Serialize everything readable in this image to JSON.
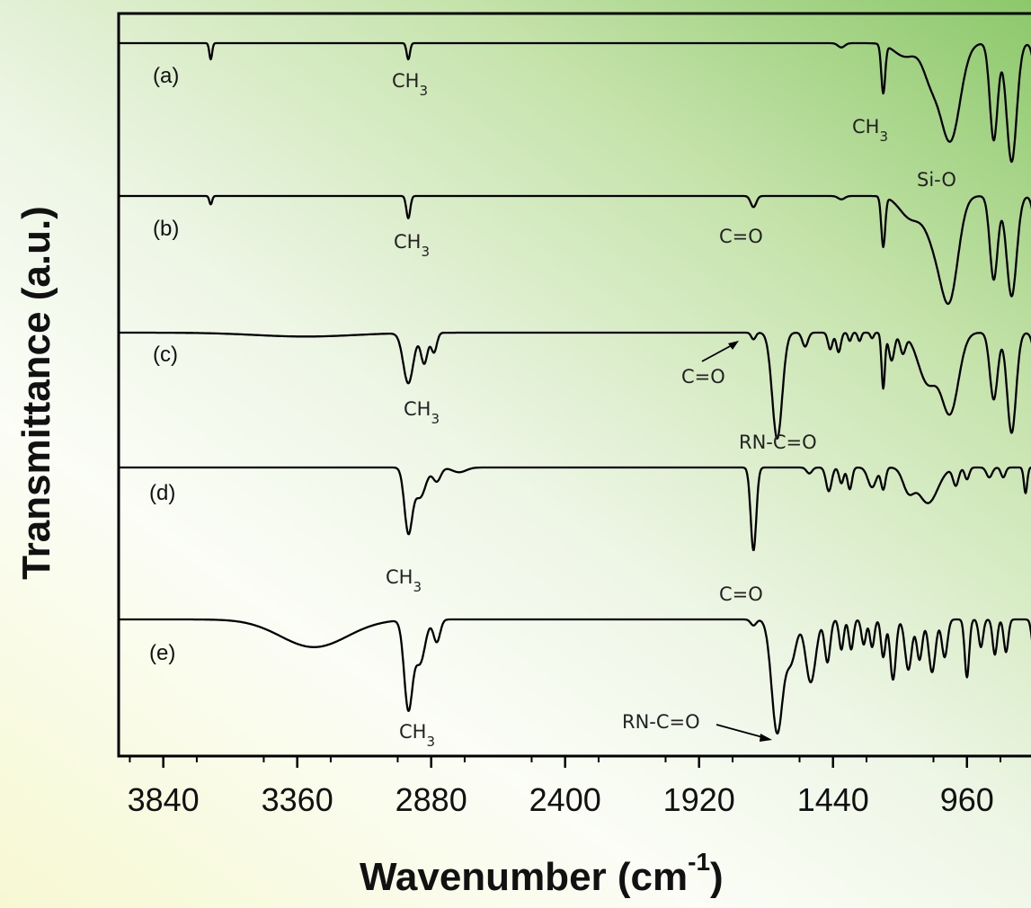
{
  "chart_data": {
    "type": "line",
    "title": "",
    "xlabel": {
      "main": "Wavenumber (cm",
      "sup": "-1",
      "close": ")"
    },
    "ylabel": "Transmittance (a.u.)",
    "x_reversed": true,
    "xlim": [
      4000,
      650
    ],
    "x_ticks": [
      "3840",
      "3360",
      "2880",
      "2400",
      "1920",
      "1440",
      "960"
    ],
    "x_tick_values": [
      3840,
      3360,
      2880,
      2400,
      1920,
      1440,
      960
    ],
    "grid": false,
    "legend": "none",
    "y_stacked_offset_baselines": [
      0,
      1,
      2,
      3,
      4
    ],
    "series": [
      {
        "name": "(a)",
        "baseline": 0,
        "bands": [
          {
            "x": 3670,
            "depth": 0.3,
            "width": 5
          },
          {
            "x": 2962,
            "depth": 0.3,
            "width": 6
          },
          {
            "x": 1410,
            "depth": 0.08,
            "width": 12
          },
          {
            "x": 1260,
            "depth": 0.9,
            "width": 7
          },
          {
            "x": 1180,
            "depth": 0.25,
            "width": 40
          },
          {
            "x": 1090,
            "depth": 0.6,
            "width": 28
          },
          {
            "x": 1020,
            "depth": 1.8,
            "width": 35
          },
          {
            "x": 864,
            "depth": 1.8,
            "width": 14
          },
          {
            "x": 800,
            "depth": 2.2,
            "width": 18
          },
          {
            "x": 700,
            "depth": 1.2,
            "width": 15
          }
        ]
      },
      {
        "name": "(b)",
        "baseline": 1,
        "bands": [
          {
            "x": 3670,
            "depth": 0.15,
            "width": 5
          },
          {
            "x": 2962,
            "depth": 0.4,
            "width": 7
          },
          {
            "x": 1725,
            "depth": 0.2,
            "width": 10
          },
          {
            "x": 1410,
            "depth": 0.06,
            "width": 12
          },
          {
            "x": 1260,
            "depth": 0.9,
            "width": 7
          },
          {
            "x": 1160,
            "depth": 0.4,
            "width": 40
          },
          {
            "x": 1070,
            "depth": 0.8,
            "width": 35
          },
          {
            "x": 1020,
            "depth": 1.6,
            "width": 30
          },
          {
            "x": 864,
            "depth": 1.5,
            "width": 14
          },
          {
            "x": 800,
            "depth": 1.8,
            "width": 18
          },
          {
            "x": 700,
            "depth": 1.2,
            "width": 15
          }
        ]
      },
      {
        "name": "(c)",
        "baseline": 2,
        "bands": [
          {
            "x": 3330,
            "depth": 0.07,
            "width": 180
          },
          {
            "x": 2962,
            "depth": 0.9,
            "width": 18
          },
          {
            "x": 2905,
            "depth": 0.55,
            "width": 12
          },
          {
            "x": 2870,
            "depth": 0.35,
            "width": 10
          },
          {
            "x": 1725,
            "depth": 0.12,
            "width": 8
          },
          {
            "x": 1640,
            "depth": 1.9,
            "width": 18
          },
          {
            "x": 1540,
            "depth": 0.25,
            "width": 10
          },
          {
            "x": 1450,
            "depth": 0.3,
            "width": 8
          },
          {
            "x": 1420,
            "depth": 0.35,
            "width": 8
          },
          {
            "x": 1380,
            "depth": 0.15,
            "width": 6
          },
          {
            "x": 1345,
            "depth": 0.15,
            "width": 6
          },
          {
            "x": 1300,
            "depth": 0.1,
            "width": 6
          },
          {
            "x": 1260,
            "depth": 1.0,
            "width": 6
          },
          {
            "x": 1230,
            "depth": 0.5,
            "width": 10
          },
          {
            "x": 1190,
            "depth": 0.35,
            "width": 10
          },
          {
            "x": 1100,
            "depth": 0.9,
            "width": 35
          },
          {
            "x": 1020,
            "depth": 1.4,
            "width": 30
          },
          {
            "x": 864,
            "depth": 1.2,
            "width": 14
          },
          {
            "x": 800,
            "depth": 1.8,
            "width": 16
          },
          {
            "x": 700,
            "depth": 1.0,
            "width": 15
          }
        ]
      },
      {
        "name": "(d)",
        "baseline": 3,
        "bands": [
          {
            "x": 2962,
            "depth": 1.6,
            "width": 14
          },
          {
            "x": 2920,
            "depth": 0.75,
            "width": 20
          },
          {
            "x": 2860,
            "depth": 0.35,
            "width": 14
          },
          {
            "x": 2780,
            "depth": 0.12,
            "width": 25
          },
          {
            "x": 1725,
            "depth": 2.1,
            "width": 10
          },
          {
            "x": 1525,
            "depth": 0.15,
            "width": 10
          },
          {
            "x": 1455,
            "depth": 0.6,
            "width": 10
          },
          {
            "x": 1410,
            "depth": 0.4,
            "width": 8
          },
          {
            "x": 1380,
            "depth": 0.55,
            "width": 8
          },
          {
            "x": 1300,
            "depth": 0.5,
            "width": 15
          },
          {
            "x": 1260,
            "depth": 0.55,
            "width": 8
          },
          {
            "x": 1170,
            "depth": 0.55,
            "width": 20
          },
          {
            "x": 1100,
            "depth": 0.9,
            "width": 35
          },
          {
            "x": 1000,
            "depth": 0.45,
            "width": 10
          },
          {
            "x": 960,
            "depth": 0.3,
            "width": 8
          },
          {
            "x": 880,
            "depth": 0.25,
            "width": 10
          },
          {
            "x": 830,
            "depth": 0.25,
            "width": 8
          },
          {
            "x": 750,
            "depth": 0.65,
            "width": 6
          },
          {
            "x": 700,
            "depth": 0.25,
            "width": 8
          }
        ]
      },
      {
        "name": "(e)",
        "baseline": 4,
        "bands": [
          {
            "x": 3300,
            "depth": 0.55,
            "width": 120
          },
          {
            "x": 2962,
            "depth": 1.75,
            "width": 15
          },
          {
            "x": 2920,
            "depth": 0.85,
            "width": 18
          },
          {
            "x": 2860,
            "depth": 0.45,
            "width": 12
          },
          {
            "x": 1725,
            "depth": 0.12,
            "width": 10
          },
          {
            "x": 1640,
            "depth": 2.25,
            "width": 20
          },
          {
            "x": 1590,
            "depth": 0.8,
            "width": 18
          },
          {
            "x": 1520,
            "depth": 1.25,
            "width": 18
          },
          {
            "x": 1460,
            "depth": 0.85,
            "width": 10
          },
          {
            "x": 1410,
            "depth": 0.6,
            "width": 8
          },
          {
            "x": 1375,
            "depth": 0.6,
            "width": 8
          },
          {
            "x": 1330,
            "depth": 0.5,
            "width": 8
          },
          {
            "x": 1300,
            "depth": 0.55,
            "width": 8
          },
          {
            "x": 1260,
            "depth": 0.75,
            "width": 8
          },
          {
            "x": 1225,
            "depth": 1.2,
            "width": 10
          },
          {
            "x": 1170,
            "depth": 1.0,
            "width": 12
          },
          {
            "x": 1130,
            "depth": 0.8,
            "width": 10
          },
          {
            "x": 1085,
            "depth": 1.05,
            "width": 12
          },
          {
            "x": 1040,
            "depth": 0.75,
            "width": 10
          },
          {
            "x": 960,
            "depth": 1.15,
            "width": 8
          },
          {
            "x": 910,
            "depth": 0.55,
            "width": 8
          },
          {
            "x": 860,
            "depth": 0.7,
            "width": 8
          },
          {
            "x": 820,
            "depth": 0.65,
            "width": 8
          },
          {
            "x": 720,
            "depth": 0.6,
            "width": 8
          },
          {
            "x": 690,
            "depth": 0.55,
            "width": 6
          }
        ]
      }
    ],
    "annotations": [
      {
        "series": "(a)",
        "text": "CH",
        "sub": "3",
        "x": 2962
      },
      {
        "series": "(a)",
        "text": "CH",
        "sub": "3",
        "x": 1260
      },
      {
        "series": "(a)",
        "text": "Si-O",
        "sub": "",
        "x": 1020
      },
      {
        "series": "(b)",
        "text": "CH",
        "sub": "3",
        "x": 2962
      },
      {
        "series": "(b)",
        "text": "C=O",
        "sub": "",
        "x": 1725
      },
      {
        "series": "(c)",
        "text": "C=O",
        "sub": "",
        "x": 1725
      },
      {
        "series": "(c)",
        "text": "CH",
        "sub": "3",
        "x": 2962
      },
      {
        "series": "(c)",
        "text": "RN-C=O",
        "sub": "",
        "x": 1640
      },
      {
        "series": "(d)",
        "text": "CH",
        "sub": "3",
        "x": 2962
      },
      {
        "series": "(d)",
        "text": "C=O",
        "sub": "",
        "x": 1725
      },
      {
        "series": "(e)",
        "text": "CH",
        "sub": "3",
        "x": 2962
      },
      {
        "series": "(e)",
        "text": "RN-C=O",
        "sub": "",
        "x": 1640
      }
    ]
  }
}
